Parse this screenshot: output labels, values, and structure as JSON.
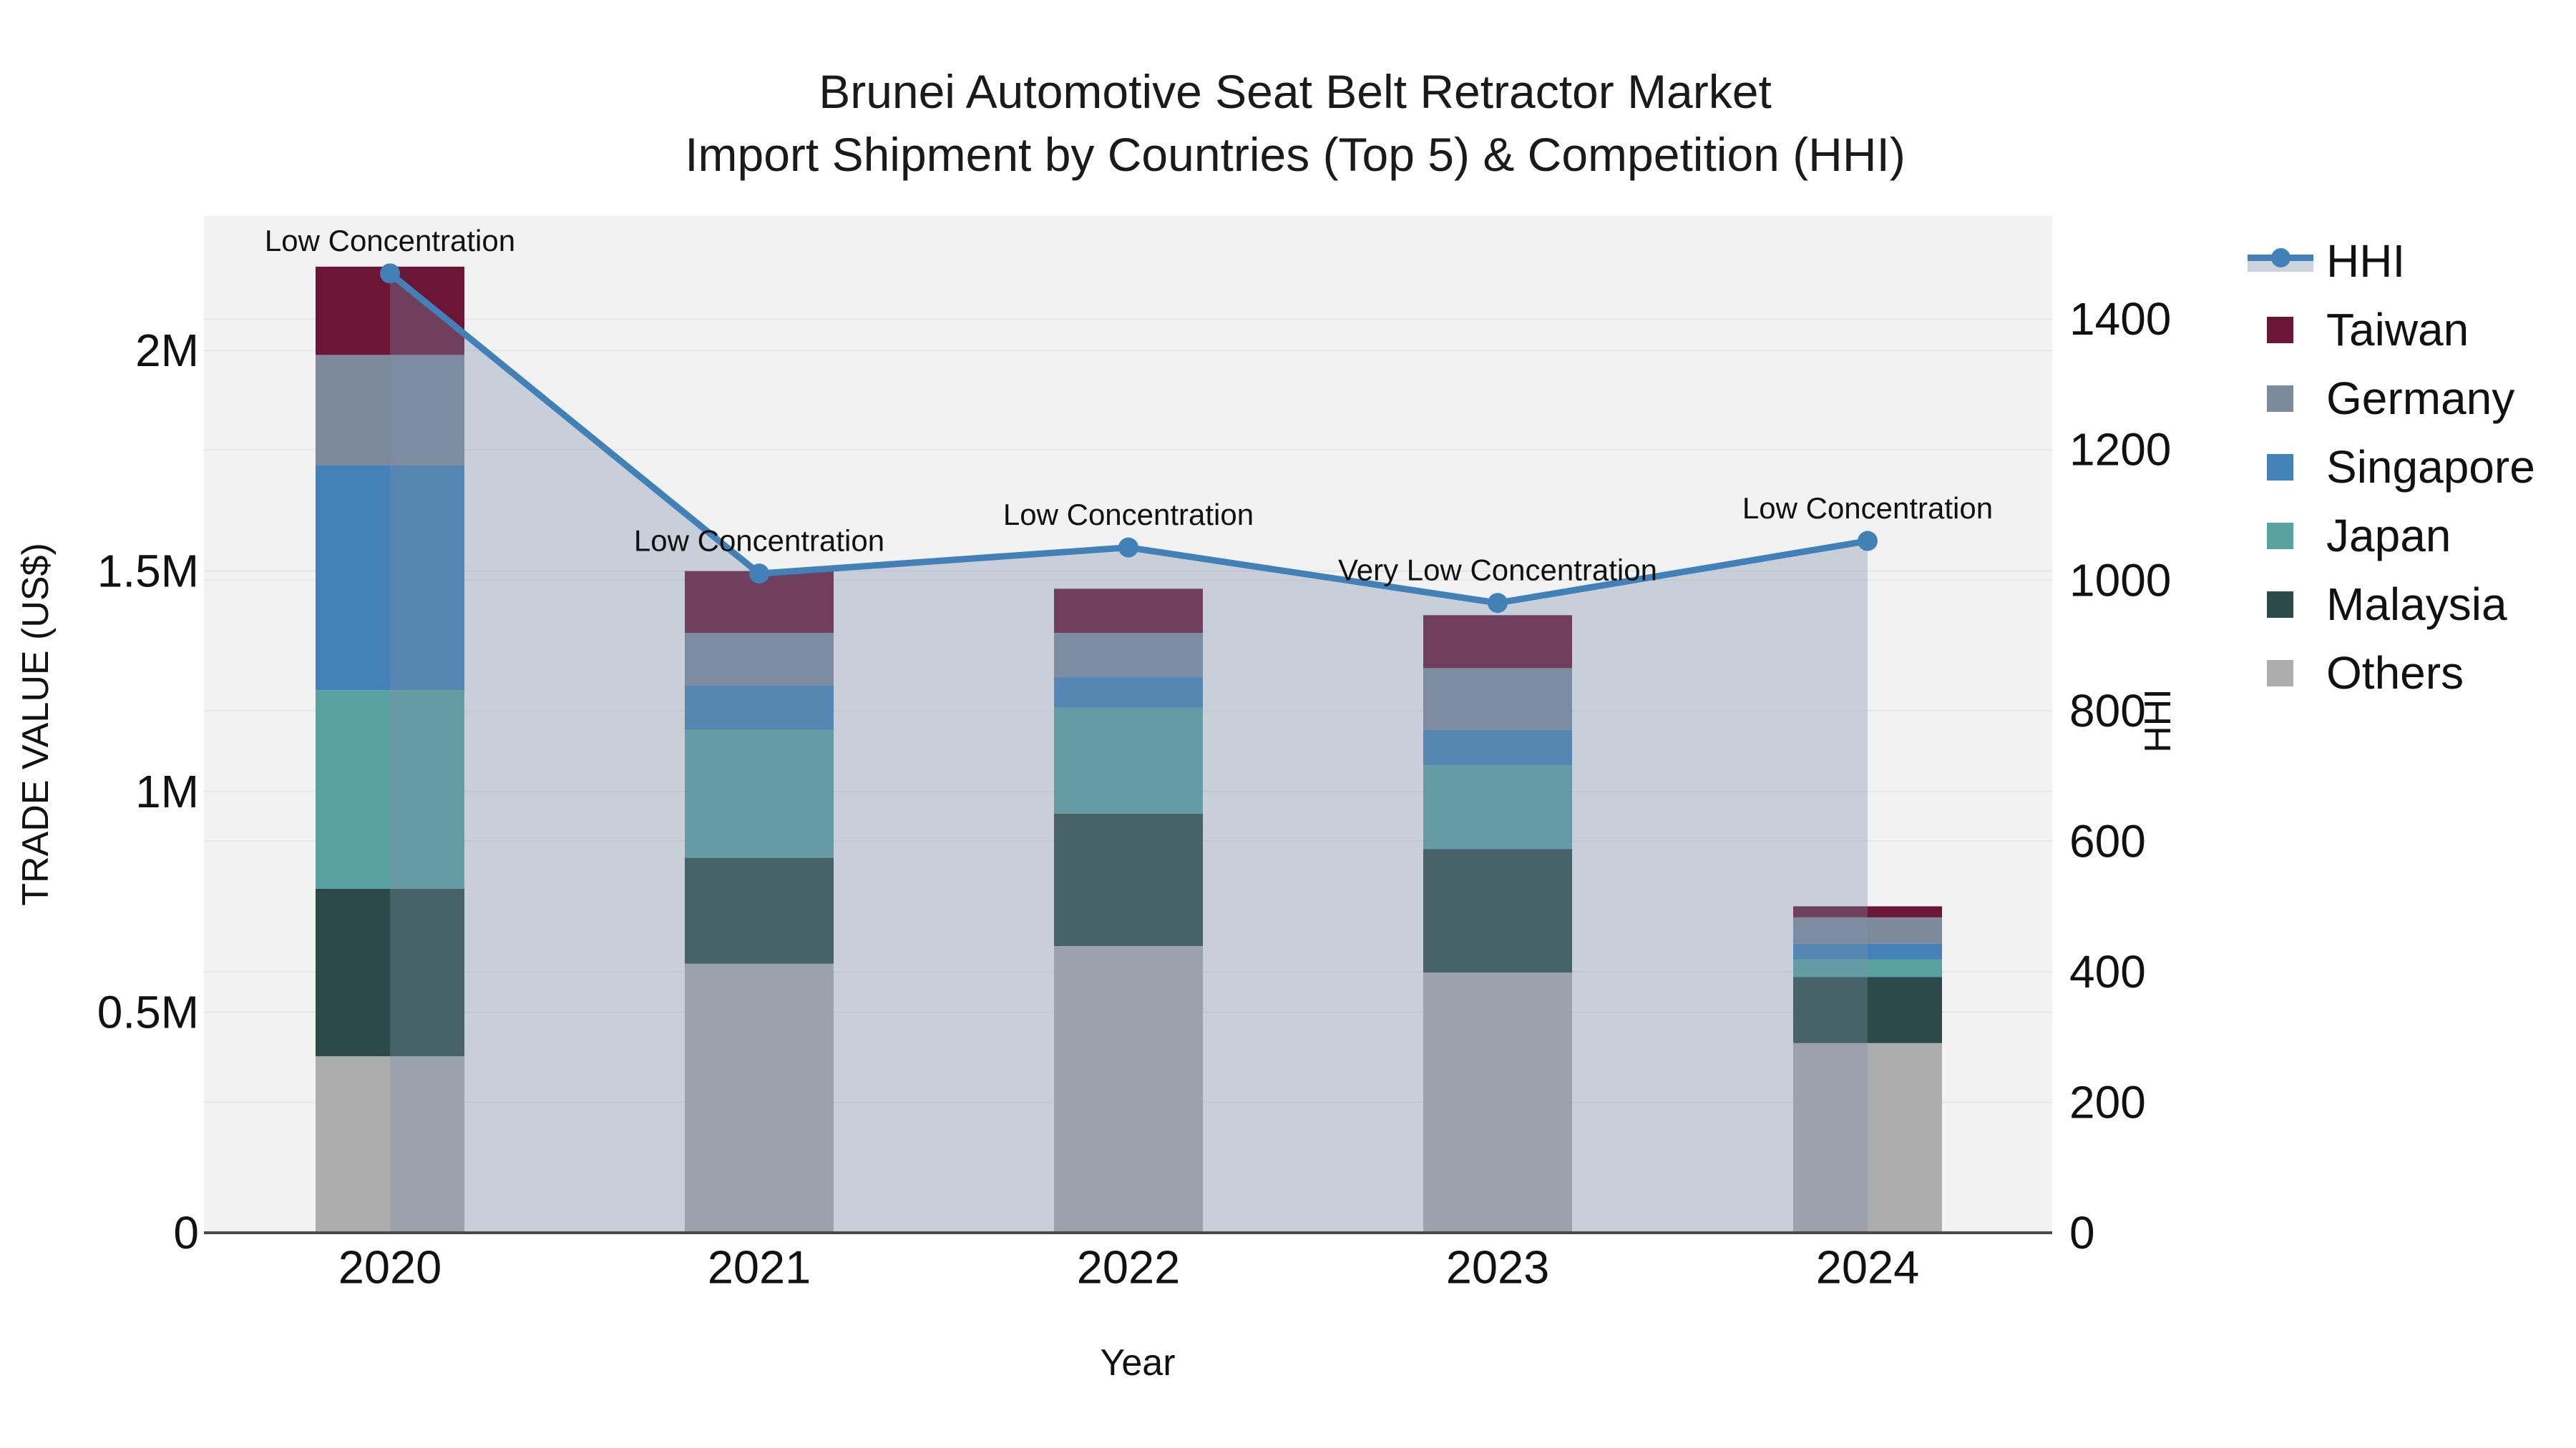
{
  "title": {
    "line1": "Brunei Automotive Seat Belt Retractor Market",
    "line2": "Import Shipment by Countries (Top 5) & Competition (HHI)"
  },
  "axes": {
    "left": {
      "title": "TRADE VALUE (US$)",
      "ticks": [
        {
          "label": "0",
          "value": 0
        },
        {
          "label": "0.5M",
          "value": 500000
        },
        {
          "label": "1M",
          "value": 1000000
        },
        {
          "label": "1.5M",
          "value": 1500000
        },
        {
          "label": "2M",
          "value": 2000000
        }
      ]
    },
    "right": {
      "title": "HHI",
      "ticks": [
        {
          "label": "0",
          "value": 0
        },
        {
          "label": "200",
          "value": 200
        },
        {
          "label": "400",
          "value": 400
        },
        {
          "label": "600",
          "value": 600
        },
        {
          "label": "800",
          "value": 800
        },
        {
          "label": "1000",
          "value": 1000
        },
        {
          "label": "1200",
          "value": 1200
        },
        {
          "label": "1400",
          "value": 1400
        }
      ]
    },
    "x": {
      "title": "Year",
      "categories": [
        "2020",
        "2021",
        "2022",
        "2023",
        "2024"
      ]
    }
  },
  "legend": {
    "items": [
      {
        "label": "HHI",
        "type": "line",
        "color": "#4181b7"
      },
      {
        "label": "Taiwan",
        "type": "swatch",
        "color": "#6b1537"
      },
      {
        "label": "Germany",
        "type": "swatch",
        "color": "#7d8a9b"
      },
      {
        "label": "Singapore",
        "type": "swatch",
        "color": "#4481b8"
      },
      {
        "label": "Japan",
        "type": "swatch",
        "color": "#5aa1a1"
      },
      {
        "label": "Malaysia",
        "type": "swatch",
        "color": "#2c4a49"
      },
      {
        "label": "Others",
        "type": "swatch",
        "color": "#adadad"
      }
    ]
  },
  "chart_data": {
    "type": "combo: stacked bar (left axis) + line with area fill (right axis)",
    "categories": [
      "2020",
      "2021",
      "2022",
      "2023",
      "2024"
    ],
    "bar_value_unit": "US$ trade value",
    "stack_order_bottom_to_top": [
      "Others",
      "Malaysia",
      "Japan",
      "Singapore",
      "Germany",
      "Taiwan"
    ],
    "series": [
      {
        "name": "Taiwan",
        "color": "#6b1537",
        "values": [
          200000,
          140000,
          100000,
          120000,
          25000
        ]
      },
      {
        "name": "Germany",
        "color": "#7d8a9b",
        "values": [
          250000,
          120000,
          100000,
          140000,
          60000
        ]
      },
      {
        "name": "Singapore",
        "color": "#4481b8",
        "values": [
          510000,
          100000,
          70000,
          80000,
          35000
        ]
      },
      {
        "name": "Japan",
        "color": "#5aa1a1",
        "values": [
          450000,
          290000,
          240000,
          190000,
          40000
        ]
      },
      {
        "name": "Malaysia",
        "color": "#2c4a49",
        "values": [
          380000,
          240000,
          300000,
          280000,
          150000
        ]
      },
      {
        "name": "Others",
        "color": "#adadad",
        "values": [
          400000,
          610000,
          650000,
          590000,
          430000
        ]
      }
    ],
    "bar_totals": [
      2190000,
      1500000,
      1460000,
      1400000,
      740000
    ],
    "line_series": {
      "name": "HHI",
      "color": "#4181b7",
      "area_fill": "rgba(125,143,170,0.35)",
      "values": [
        1470,
        1010,
        1050,
        965,
        1060
      ],
      "annotations": [
        "Low Concentration",
        "Low Concentration",
        "Low Concentration",
        "Very Low Concentration",
        "Low Concentration"
      ]
    },
    "ylim_left": [
      0,
      2305000
    ],
    "ylim_right": [
      0,
      1558
    ],
    "grid": true,
    "legend_position": "right",
    "plot_background": "#f2f2f3",
    "gridline_color": "#e7e7ea",
    "axisline_color": "#4a4a4a"
  }
}
